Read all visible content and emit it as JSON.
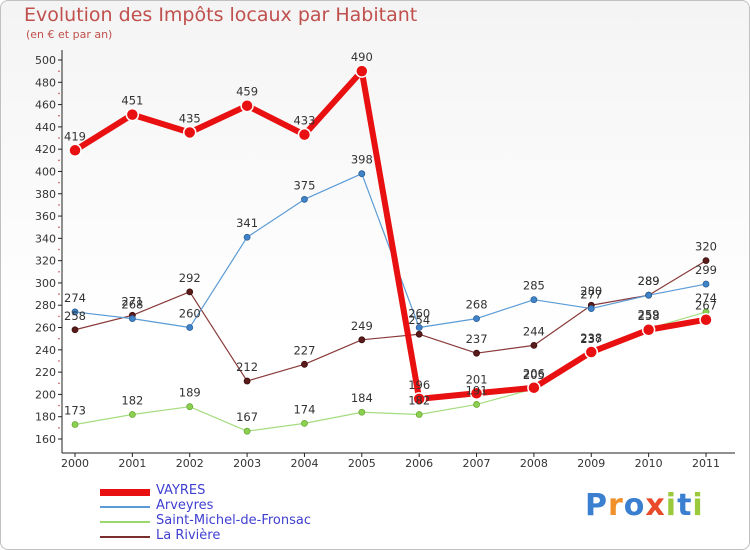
{
  "title": "Evolution des Impôts locaux par Habitant",
  "subtitle": "(en € et par an)",
  "logo": [
    "P",
    "r",
    "o",
    "x",
    "i",
    "t",
    "i"
  ],
  "chart_data": {
    "type": "line",
    "x": [
      2000,
      2001,
      2002,
      2003,
      2004,
      2005,
      2006,
      2007,
      2008,
      2009,
      2010,
      2011
    ],
    "ylim": [
      160,
      500
    ],
    "yticks": [
      160,
      180,
      200,
      220,
      240,
      260,
      280,
      300,
      320,
      340,
      360,
      380,
      400,
      420,
      440,
      460,
      480,
      500
    ],
    "grid": false,
    "legend_position": "bottom-left",
    "series": [
      {
        "name": "VAYRES",
        "color": "#e81010",
        "values": [
          419,
          451,
          435,
          459,
          433,
          490,
          196,
          201,
          206,
          238,
          258,
          267
        ]
      },
      {
        "name": "Arveyres",
        "color": "#5b9bd5",
        "values": [
          274,
          268,
          260,
          341,
          375,
          398,
          260,
          268,
          285,
          277,
          289,
          299
        ]
      },
      {
        "name": "Saint-Michel-de-Fronsac",
        "color": "#9bd870",
        "values": [
          173,
          182,
          189,
          167,
          174,
          184,
          182,
          191,
          205,
          237,
          259,
          274
        ]
      },
      {
        "name": "La Rivière",
        "color": "#7a2e2e",
        "values": [
          258,
          271,
          292,
          212,
          227,
          249,
          254,
          237,
          244,
          280,
          289,
          320
        ]
      }
    ]
  }
}
